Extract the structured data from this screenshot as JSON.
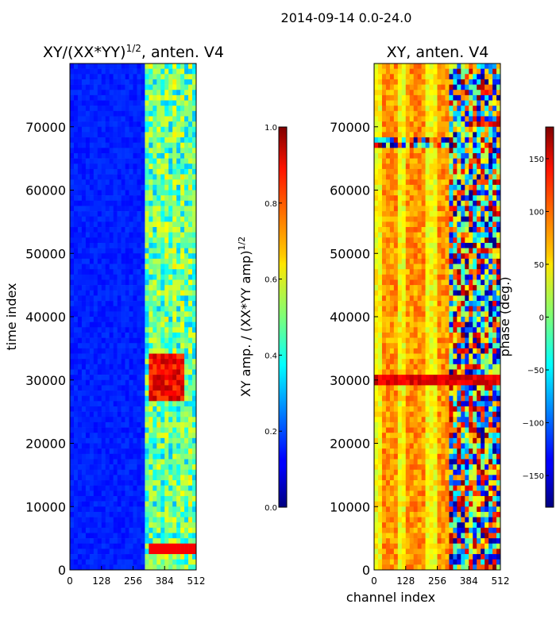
{
  "figure_title": "2014-09-14 0.0-24.0",
  "chart_data": [
    {
      "type": "heatmap",
      "title_prefix": "XY/(XX*YY)",
      "title_exp": "1/2",
      "title_suffix": ", anten. V4",
      "xlabel": "",
      "ylabel": "time index",
      "xlim": [
        0,
        512
      ],
      "ylim": [
        0,
        80000
      ],
      "xticks": [
        0,
        128,
        256,
        384,
        512
      ],
      "yticks": [
        0,
        10000,
        20000,
        30000,
        40000,
        50000,
        60000,
        70000
      ],
      "colormap": "jet",
      "colorbar": {
        "label_main": "XY amp. / (XX*YY amp)",
        "label_exp": "1/2",
        "range": [
          0.0,
          1.0
        ],
        "ticks": [
          "0.0",
          "0.2",
          "0.4",
          "0.6",
          "0.8",
          "1.0"
        ]
      }
    },
    {
      "type": "heatmap",
      "title": "XY, anten. V4",
      "xlabel": "channel index",
      "ylabel": "",
      "xlim": [
        0,
        512
      ],
      "ylim": [
        0,
        80000
      ],
      "xticks": [
        0,
        128,
        256,
        384,
        512
      ],
      "yticks": [
        0,
        10000,
        20000,
        30000,
        40000,
        50000,
        60000,
        70000
      ],
      "colormap": "jet",
      "colorbar": {
        "label": "phase (deg.)",
        "range": [
          -180,
          180
        ],
        "ticks": [
          "−150",
          "−100",
          "−50",
          "0",
          "50",
          "100",
          "150"
        ]
      }
    }
  ],
  "colors": {
    "axis": "#000000",
    "background": "#ffffff"
  }
}
